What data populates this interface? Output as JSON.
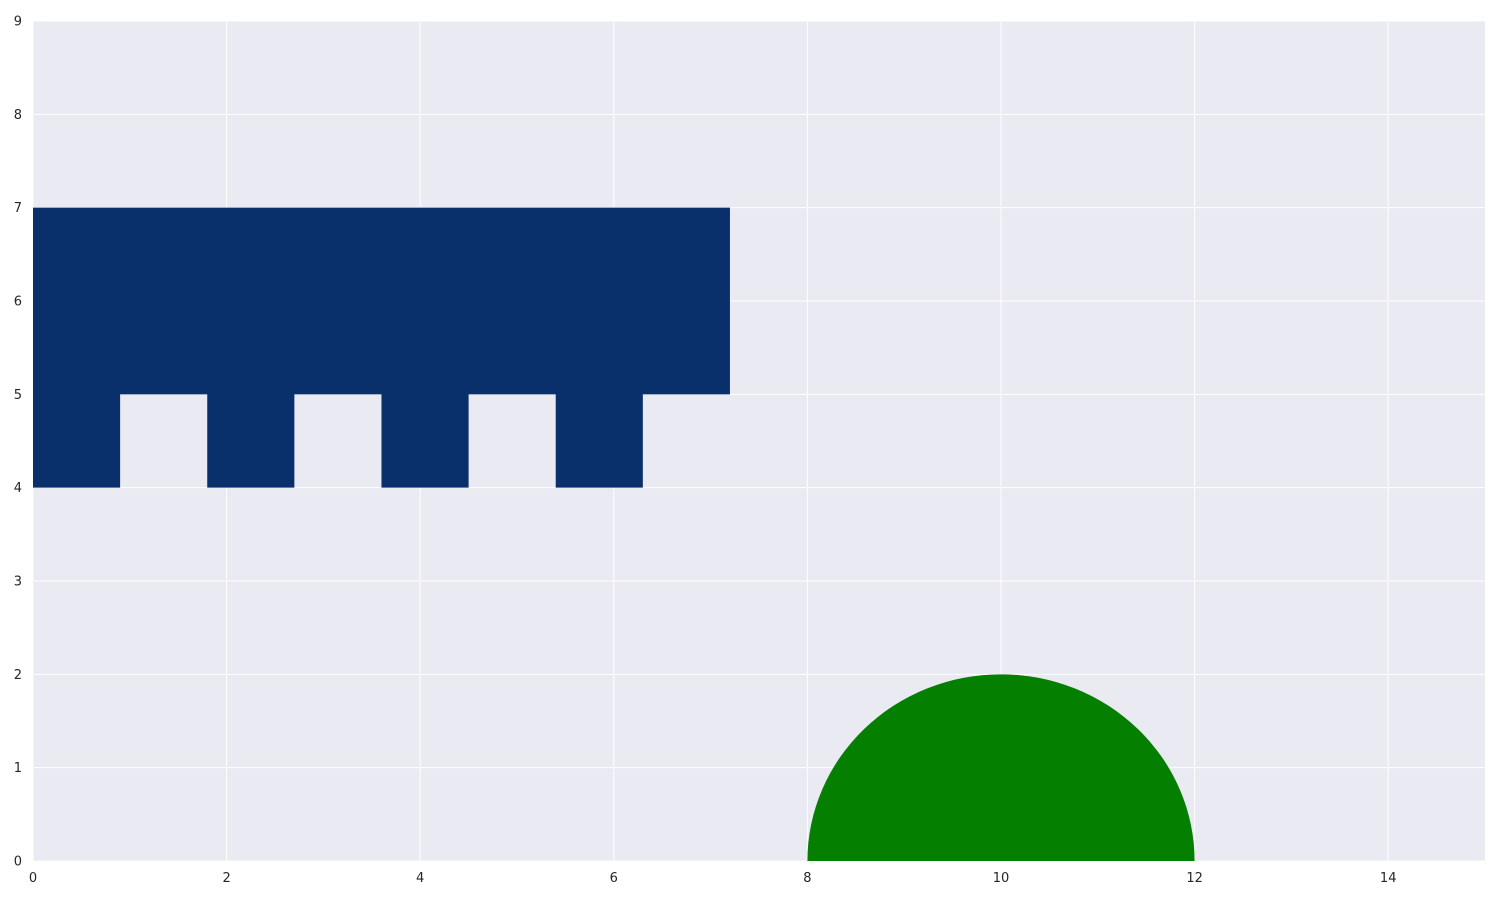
{
  "chart_data": {
    "type": "area",
    "title": "",
    "xlabel": "",
    "ylabel": "",
    "xlim": [
      0,
      15
    ],
    "ylim": [
      0,
      9
    ],
    "x_ticks": [
      "0",
      "2",
      "4",
      "6",
      "8",
      "10",
      "12",
      "14"
    ],
    "y_ticks": [
      "0",
      "1",
      "2",
      "3",
      "4",
      "5",
      "6",
      "7",
      "8",
      "9"
    ],
    "grid": true,
    "style": {
      "background": "#eaeaf2",
      "grid_color": "#ffffff"
    },
    "shapes": [
      {
        "name": "",
        "kind": "polygon",
        "color": "#0a306b",
        "vertices": [
          [
            0,
            7
          ],
          [
            7.2,
            7
          ],
          [
            7.2,
            5
          ],
          [
            6.3,
            5
          ],
          [
            6.3,
            4
          ],
          [
            5.4,
            4
          ],
          [
            5.4,
            5
          ],
          [
            4.5,
            5
          ],
          [
            4.5,
            4
          ],
          [
            3.6,
            4
          ],
          [
            3.6,
            5
          ],
          [
            2.7,
            5
          ],
          [
            2.7,
            4
          ],
          [
            1.8,
            4
          ],
          [
            1.8,
            5
          ],
          [
            0.9,
            5
          ],
          [
            0.9,
            4
          ],
          [
            0,
            4
          ]
        ]
      },
      {
        "name": "",
        "kind": "semicircle",
        "color": "#047f00",
        "center": [
          10,
          0
        ],
        "radius": 2
      }
    ]
  }
}
